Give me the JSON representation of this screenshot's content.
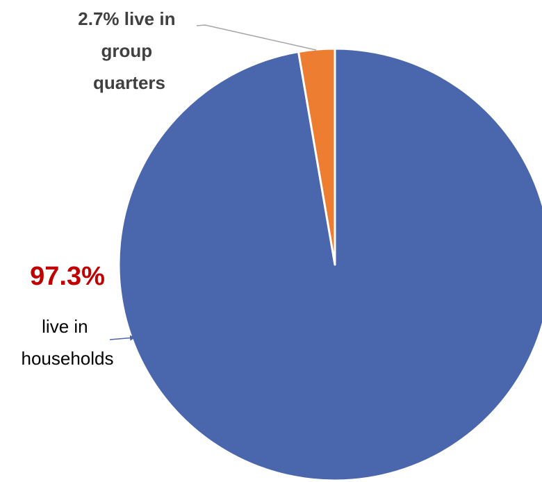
{
  "chart_data": {
    "type": "pie",
    "slices": [
      {
        "label": "live in households",
        "value": 97.3,
        "color": "#4A66AC"
      },
      {
        "label": "live in group quarters",
        "value": 2.7,
        "color": "#ED7D31"
      }
    ],
    "annotations": {
      "group_quarters": [
        "2.7% live in",
        "group",
        "quarters"
      ],
      "households_pct": "97.3%",
      "households_text": [
        "live in",
        "households"
      ]
    },
    "start_angle": "12 o'clock",
    "direction": "clockwise",
    "colors": {
      "pct_highlight": "#C00000",
      "leader_gray": "#A6A6A6",
      "arrow_blue": "#4A66AC"
    }
  }
}
